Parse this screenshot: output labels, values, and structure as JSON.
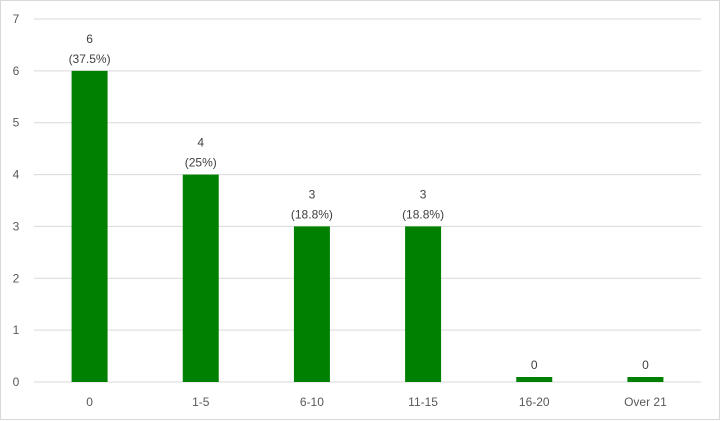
{
  "chart_data": {
    "type": "bar",
    "categories": [
      "0",
      "1-5",
      "6-10",
      "11-15",
      "16-20",
      "Over 21"
    ],
    "values": [
      6,
      4,
      3,
      3,
      0,
      0
    ],
    "data_labels": [
      {
        "value": "6",
        "percent": "(37.5%)"
      },
      {
        "value": "4",
        "percent": "(25%)"
      },
      {
        "value": "3",
        "percent": "(18.8%)"
      },
      {
        "value": "3",
        "percent": "(18.8%)"
      },
      {
        "value": "0",
        "percent": ""
      },
      {
        "value": "0",
        "percent": ""
      }
    ],
    "y_ticks": [
      "0",
      "1",
      "2",
      "3",
      "4",
      "5",
      "6",
      "7"
    ],
    "ylim": [
      0,
      7
    ],
    "title": "",
    "xlabel": "",
    "ylabel": "",
    "grid": true,
    "legend": "none",
    "bar_color": "#008000",
    "grid_color": "#d9d9d9"
  }
}
